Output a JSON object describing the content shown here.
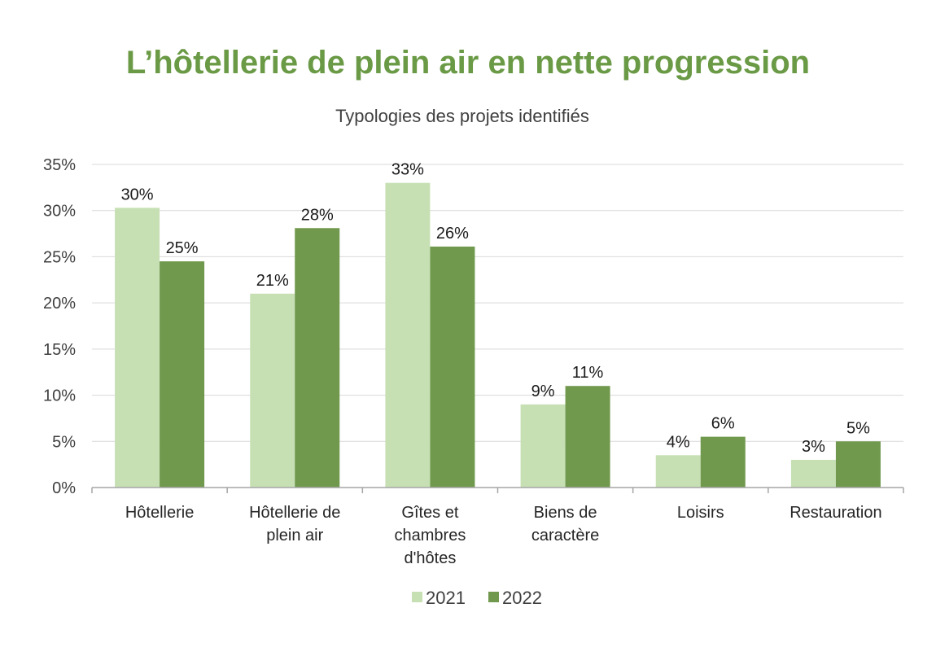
{
  "chart_data": {
    "type": "bar",
    "title": "L’hôtellerie de plein air en nette progression",
    "subtitle": "Typologies des projets identifiés",
    "categories": [
      [
        "Hôtellerie"
      ],
      [
        "Hôtellerie de",
        "plein air"
      ],
      [
        "Gîtes et",
        "chambres",
        "d'hôtes"
      ],
      [
        "Biens de",
        "caractère"
      ],
      [
        "Loisirs"
      ],
      [
        "Restauration"
      ]
    ],
    "series": [
      {
        "name": "2021",
        "values": [
          30.3,
          21,
          33,
          9,
          3.5,
          3
        ],
        "labels": [
          "30%",
          "21%",
          "33%",
          "9%",
          "4%",
          "3%"
        ],
        "color": "#c6e0b4"
      },
      {
        "name": "2022",
        "values": [
          24.5,
          28.1,
          26.1,
          11,
          5.5,
          5
        ],
        "labels": [
          "25%",
          "28%",
          "26%",
          "11%",
          "6%",
          "5%"
        ],
        "color": "#70994d"
      }
    ],
    "yticks": [
      "0%",
      "5%",
      "10%",
      "15%",
      "20%",
      "25%",
      "30%",
      "35%"
    ],
    "ylim": [
      0,
      35
    ],
    "grid": true,
    "legend": "bottom",
    "title_color": "#6a9a45"
  }
}
